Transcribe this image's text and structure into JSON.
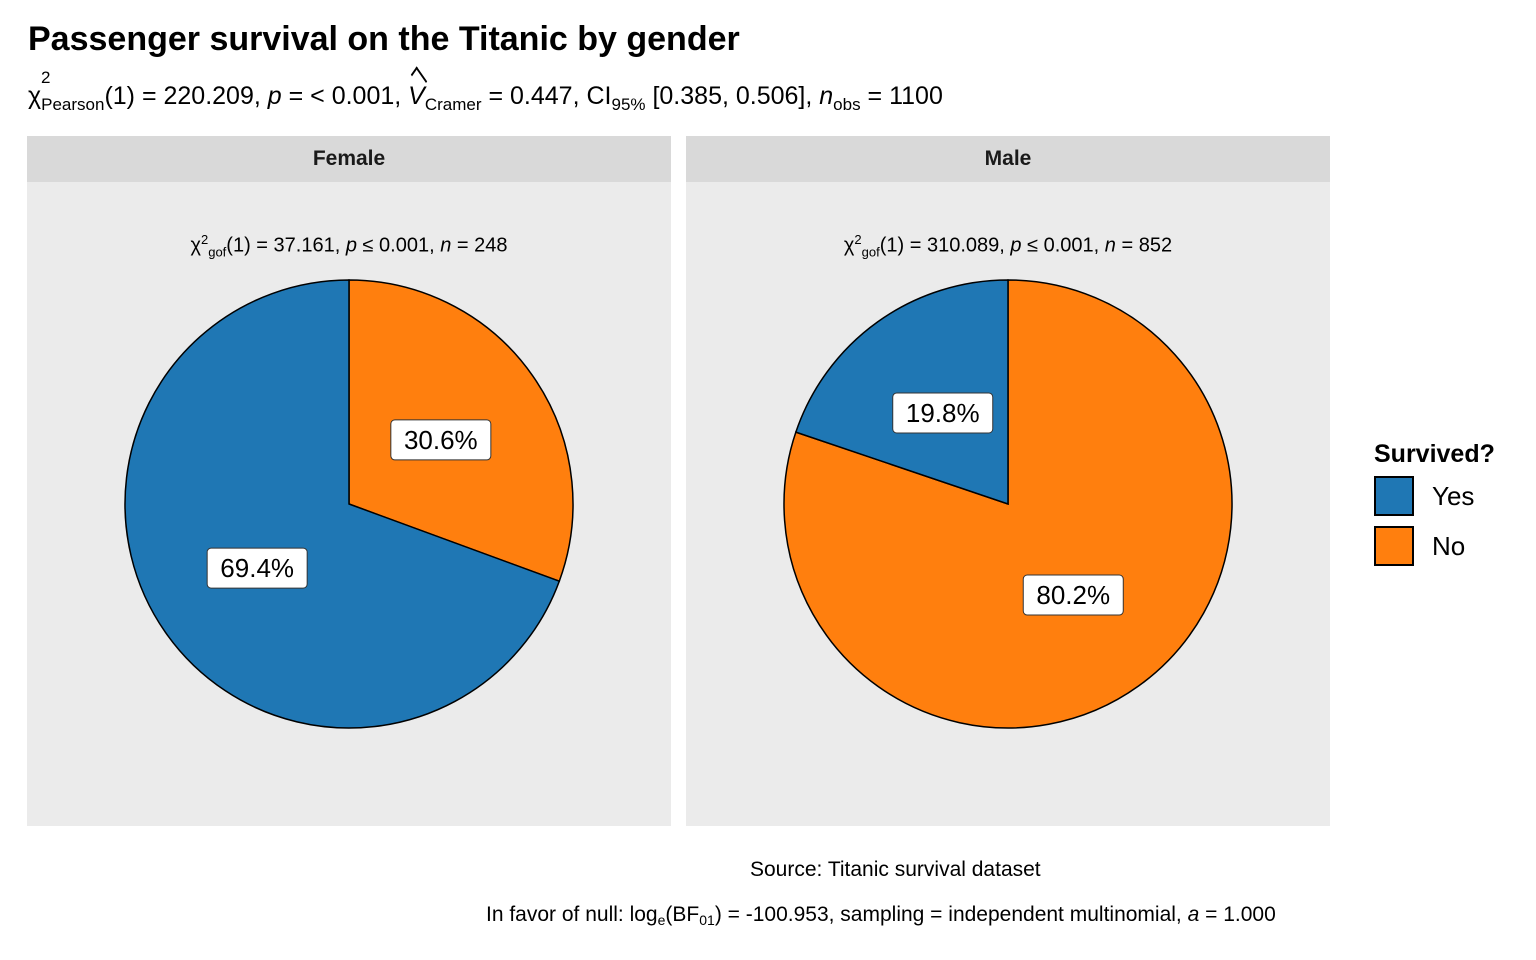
{
  "title": "Passenger survival on the Titanic by gender",
  "subtitle": {
    "chi_symbol": "χ",
    "chi_sup": "2",
    "chi_sub": "Pearson",
    "chi_df": "(1) = 220.209, ",
    "p_symbol": "p",
    "p_text": " = < 0.001, ",
    "v_symbol": "V",
    "v_sub": "Cramer",
    "v_text": " = 0.447, CI",
    "ci_sub": "95%",
    "ci_text": " [0.385, 0.506], ",
    "n_symbol": "n",
    "n_sub": "obs",
    "n_text": " = 1100"
  },
  "caption": {
    "source": "Source: Titanic survival dataset",
    "bf_prefix": "In favor of null: log",
    "bf_sub_e": "e",
    "bf_mid": "(BF",
    "bf_sub_01": "01",
    "bf_suffix": ") = -100.953, sampling = independent multinomial, ",
    "a_symbol": "a",
    "a_text": " = 1.000"
  },
  "legend": {
    "title": "Survived?",
    "items": [
      {
        "label": "Yes",
        "color": "#1f77b4"
      },
      {
        "label": "No",
        "color": "#ff7f0e"
      }
    ]
  },
  "chart_data": [
    {
      "type": "pie",
      "facet": "Female",
      "stat": {
        "chi_symbol": "χ",
        "chi_sup": "2",
        "chi_sub": "gof",
        "text_a": "(1) = 37.161, ",
        "p_symbol": "p",
        "text_b": " ≤ 0.001, ",
        "n_symbol": "n",
        "text_c": " = 248"
      },
      "slices": [
        {
          "label": "No",
          "value": 30.6,
          "display": "30.6%",
          "color": "#ff7f0e"
        },
        {
          "label": "Yes",
          "value": 69.4,
          "display": "69.4%",
          "color": "#1f77b4"
        }
      ]
    },
    {
      "type": "pie",
      "facet": "Male",
      "stat": {
        "chi_symbol": "χ",
        "chi_sup": "2",
        "chi_sub": "gof",
        "text_a": "(1) = 310.089, ",
        "p_symbol": "p",
        "text_b": " ≤ 0.001, ",
        "n_symbol": "n",
        "text_c": " = 852"
      },
      "slices": [
        {
          "label": "No",
          "value": 80.2,
          "display": "80.2%",
          "color": "#ff7f0e"
        },
        {
          "label": "Yes",
          "value": 19.8,
          "display": "19.8%",
          "color": "#1f77b4"
        }
      ]
    }
  ]
}
